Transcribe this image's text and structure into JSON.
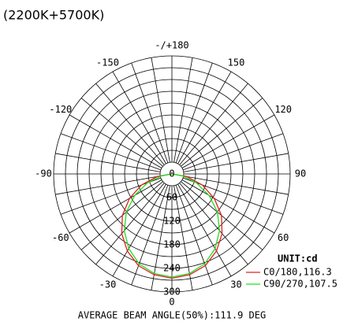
{
  "chart_data": {
    "type": "polar",
    "title": "(2200K+5700K)",
    "rlim": [
      0,
      300
    ],
    "rticks": [
      0,
      60,
      120,
      180,
      240,
      300
    ],
    "rgrid": [
      30,
      60,
      90,
      120,
      150,
      180,
      210,
      240,
      270,
      300
    ],
    "angle_ticks": [
      0,
      30,
      60,
      90,
      120,
      150,
      {
        "value": 180,
        "label": "-/+180"
      },
      -150,
      -120,
      -90,
      -60,
      -30
    ],
    "spokes": [
      -170,
      -160,
      -150,
      -140,
      -130,
      -120,
      -110,
      -100,
      -90,
      -80,
      -70,
      -60,
      -50,
      -40,
      -30,
      -20,
      -10,
      0,
      10,
      20,
      30,
      40,
      50,
      60,
      70,
      80,
      90,
      100,
      110,
      120,
      130,
      140,
      150,
      160,
      170,
      180
    ],
    "angles": [
      -90,
      -80,
      -70,
      -60,
      -50,
      -40,
      -30,
      -20,
      -10,
      0,
      10,
      20,
      30,
      40,
      50,
      60,
      70,
      80,
      90
    ],
    "series": [
      {
        "name": "C0/180,116.3",
        "color": "#e02020",
        "values": [
          0,
          38,
          82,
          124,
          164,
          198,
          226,
          248,
          260,
          265,
          260,
          248,
          226,
          198,
          164,
          124,
          82,
          38,
          0
        ]
      },
      {
        "name": "C90/270,107.5",
        "color": "#22dd22",
        "values": [
          0,
          26,
          66,
          109,
          151,
          188,
          219,
          243,
          257,
          262,
          257,
          243,
          219,
          188,
          151,
          109,
          66,
          26,
          0
        ]
      }
    ],
    "unit": "UNIT:cd",
    "footer": "AVERAGE BEAM ANGLE(50%):111.9 DEG"
  }
}
